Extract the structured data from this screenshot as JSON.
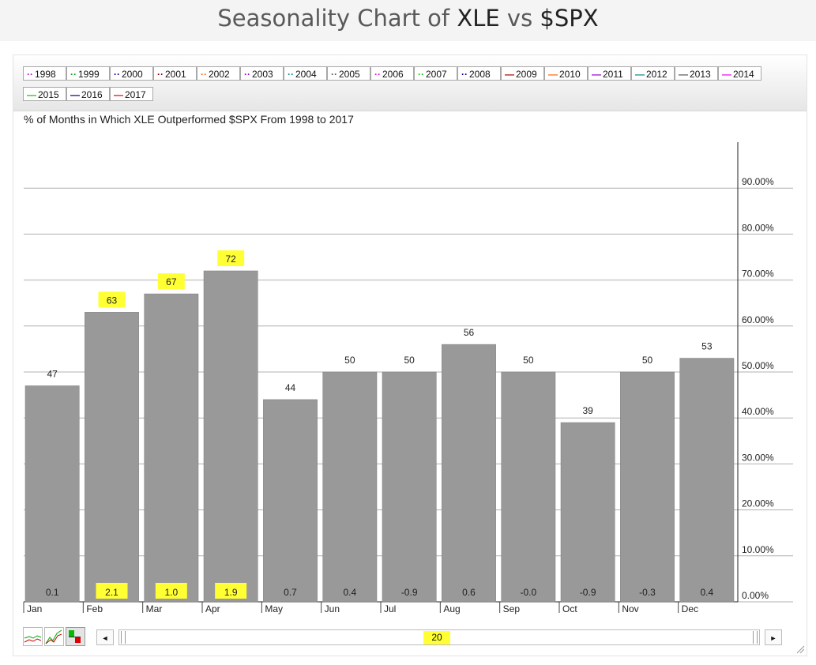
{
  "header": {
    "title_prefix": "Seasonality Chart of ",
    "symbol_a": "XLE",
    "vs": " vs ",
    "symbol_b": "$SPX"
  },
  "legend": {
    "items": [
      {
        "label": "1998",
        "color": "#cc00cc",
        "style": "dotted"
      },
      {
        "label": "1999",
        "color": "#00aa00",
        "style": "dotted"
      },
      {
        "label": "2000",
        "color": "#000099",
        "style": "dotted"
      },
      {
        "label": "2001",
        "color": "#880000",
        "style": "dotted"
      },
      {
        "label": "2002",
        "color": "#ff6600",
        "style": "dotted"
      },
      {
        "label": "2003",
        "color": "#9900cc",
        "style": "dotted"
      },
      {
        "label": "2004",
        "color": "#008888",
        "style": "dotted"
      },
      {
        "label": "2005",
        "color": "#555555",
        "style": "dotted"
      },
      {
        "label": "2006",
        "color": "#ee00ee",
        "style": "dotted"
      },
      {
        "label": "2007",
        "color": "#00cc00",
        "style": "dotted"
      },
      {
        "label": "2008",
        "color": "#000088",
        "style": "dotted"
      },
      {
        "label": "2009",
        "color": "#aa0000",
        "style": "solid"
      },
      {
        "label": "2010",
        "color": "#ff6600",
        "style": "solid"
      },
      {
        "label": "2011",
        "color": "#9900cc",
        "style": "solid"
      },
      {
        "label": "2012",
        "color": "#008888",
        "style": "solid"
      },
      {
        "label": "2013",
        "color": "#555555",
        "style": "solid"
      },
      {
        "label": "2014",
        "color": "#ee00ee",
        "style": "solid"
      },
      {
        "label": "2015",
        "color": "#00cc00",
        "style": "solid"
      },
      {
        "label": "2016",
        "color": "#000099",
        "style": "solid"
      },
      {
        "label": "2017",
        "color": "#ee0000",
        "style": "solid"
      }
    ]
  },
  "scroller": {
    "value": "20",
    "left_arrow": "◄",
    "right_arrow": "►"
  },
  "colors": {
    "bar": "#999999",
    "highlight": "#ffff33",
    "grid": "#b0b0b0"
  },
  "chart_data": {
    "type": "bar",
    "title": "% of Months in Which XLE Outperformed $SPX From 1998 to 2017",
    "categories": [
      "Jan",
      "Feb",
      "Mar",
      "Apr",
      "May",
      "Jun",
      "Jul",
      "Aug",
      "Sep",
      "Oct",
      "Nov",
      "Dec"
    ],
    "values": [
      47,
      63,
      67,
      72,
      44,
      50,
      50,
      56,
      50,
      39,
      50,
      53
    ],
    "value_labels": [
      "47",
      "63",
      "67",
      "72",
      "44",
      "50",
      "50",
      "56",
      "50",
      "39",
      "50",
      "53"
    ],
    "bottom_labels": [
      "0.1",
      "2.1",
      "1.0",
      "1.9",
      "0.7",
      "0.4",
      "-0.9",
      "0.6",
      "-0.0",
      "-0.9",
      "-0.3",
      "0.4"
    ],
    "highlighted": [
      "Feb",
      "Mar",
      "Apr"
    ],
    "ylim": [
      0,
      100
    ],
    "yticks": [
      0,
      10,
      20,
      30,
      40,
      50,
      60,
      70,
      80,
      90
    ],
    "ytick_labels": [
      "0.00%",
      "10.00%",
      "20.00%",
      "30.00%",
      "40.00%",
      "50.00%",
      "60.00%",
      "70.00%",
      "80.00%",
      "90.00%"
    ],
    "y_axis_side": "right",
    "grid": true
  }
}
